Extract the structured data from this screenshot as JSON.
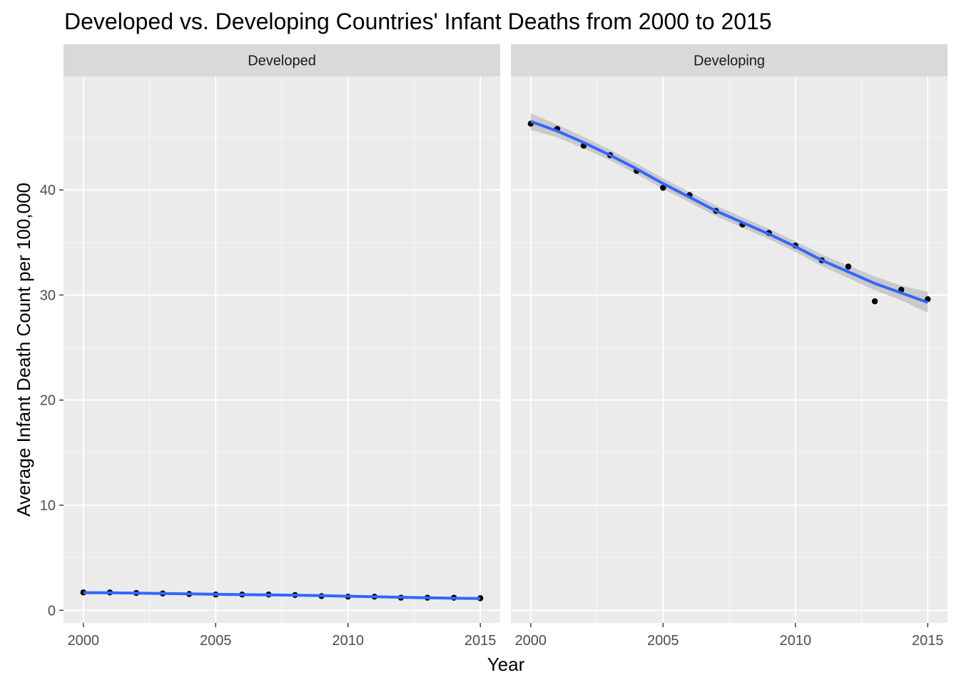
{
  "chart_data": {
    "type": "scatter",
    "title": "Developed vs. Developing Countries' Infant Deaths from 2000 to 2015",
    "xlabel": "Year",
    "ylabel": "Average Infant Death Count per 100,000",
    "xlim": [
      1999.25,
      2015.75
    ],
    "ylim": [
      -1.2,
      50.8
    ],
    "x_ticks": [
      2000,
      2005,
      2010,
      2015
    ],
    "y_ticks": [
      0,
      10,
      20,
      30,
      40
    ],
    "grid": true,
    "smooth": "loess with confidence band",
    "colors": {
      "panel_bg": "#ebebeb",
      "grid_major": "#ffffff",
      "strip_bg": "#d9d9d9",
      "points": "#000000",
      "smooth_line": "#3366ff",
      "ribbon": "#bdbdbd"
    },
    "panels": [
      {
        "label": "Developed",
        "x": [
          2000,
          2001,
          2002,
          2003,
          2004,
          2005,
          2006,
          2007,
          2008,
          2009,
          2010,
          2011,
          2012,
          2013,
          2014,
          2015
        ],
        "y": [
          1.7,
          1.7,
          1.65,
          1.6,
          1.55,
          1.5,
          1.5,
          1.5,
          1.45,
          1.35,
          1.3,
          1.3,
          1.2,
          1.2,
          1.2,
          1.15
        ],
        "fit": [
          1.68,
          1.67,
          1.64,
          1.6,
          1.56,
          1.52,
          1.49,
          1.47,
          1.44,
          1.4,
          1.34,
          1.29,
          1.24,
          1.19,
          1.15,
          1.12
        ],
        "ribbon_half_width": [
          0.15,
          0.12,
          0.1,
          0.09,
          0.08,
          0.08,
          0.08,
          0.08,
          0.08,
          0.08,
          0.08,
          0.08,
          0.09,
          0.1,
          0.12,
          0.15
        ]
      },
      {
        "label": "Developing",
        "x": [
          2000,
          2001,
          2002,
          2003,
          2004,
          2005,
          2006,
          2007,
          2008,
          2009,
          2010,
          2011,
          2012,
          2013,
          2014,
          2015
        ],
        "y": [
          46.3,
          45.8,
          44.2,
          43.3,
          41.8,
          40.2,
          39.5,
          38.0,
          36.7,
          35.9,
          34.7,
          33.3,
          32.7,
          29.4,
          30.5,
          29.6
        ],
        "fit": [
          46.5,
          45.6,
          44.5,
          43.3,
          42.0,
          40.6,
          39.3,
          38.0,
          36.9,
          35.8,
          34.6,
          33.3,
          32.2,
          31.1,
          30.2,
          29.3
        ],
        "ribbon_half_width": [
          0.8,
          0.6,
          0.55,
          0.5,
          0.5,
          0.5,
          0.5,
          0.5,
          0.5,
          0.5,
          0.5,
          0.55,
          0.6,
          0.65,
          0.7,
          1.0
        ]
      }
    ]
  }
}
